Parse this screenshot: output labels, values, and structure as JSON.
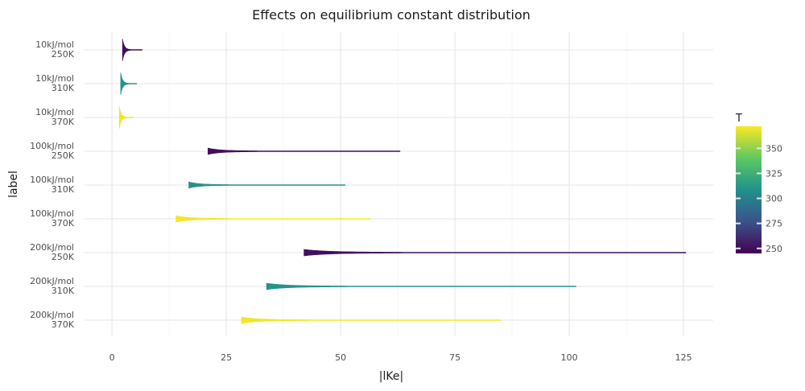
{
  "chart_data": {
    "type": "violin",
    "title": "Effects on equilibrium constant distribution",
    "xlabel": "|lKe|",
    "ylabel": "label",
    "xlim": [
      -6,
      131.5
    ],
    "x_ticks": [
      0,
      25,
      50,
      75,
      100,
      125
    ],
    "grid": true,
    "legend": {
      "title": "T",
      "placement": "right",
      "type": "colorbar",
      "range": [
        245,
        372
      ],
      "ticks": [
        250,
        275,
        300,
        325,
        350
      ],
      "colormap": [
        "#440154",
        "#3b528b",
        "#21918c",
        "#5ec962",
        "#fde725"
      ]
    },
    "categories": [
      {
        "line1": "10kJ/mol",
        "line2": "250K",
        "T": 250,
        "min": 2.3,
        "max": 6.6,
        "peak": 2.5
      },
      {
        "line1": "10kJ/mol",
        "line2": "310K",
        "T": 310,
        "min": 1.9,
        "max": 5.4,
        "peak": 2.1
      },
      {
        "line1": "10kJ/mol",
        "line2": "370K",
        "T": 370,
        "min": 1.6,
        "max": 4.6,
        "peak": 1.8
      },
      {
        "line1": "100kJ/mol",
        "line2": "250K",
        "T": 250,
        "min": 21.0,
        "max": 63.0,
        "peak": 23.0
      },
      {
        "line1": "100kJ/mol",
        "line2": "310K",
        "T": 310,
        "min": 16.8,
        "max": 51.0,
        "peak": 18.5
      },
      {
        "line1": "100kJ/mol",
        "line2": "370K",
        "T": 370,
        "min": 14.0,
        "max": 56.5,
        "peak": 15.5
      },
      {
        "line1": "200kJ/mol",
        "line2": "250K",
        "T": 250,
        "min": 42.0,
        "max": 125.5,
        "peak": 45.0
      },
      {
        "line1": "200kJ/mol",
        "line2": "310K",
        "T": 310,
        "min": 33.8,
        "max": 101.5,
        "peak": 36.5
      },
      {
        "line1": "200kJ/mol",
        "line2": "370K",
        "T": 370,
        "min": 28.3,
        "max": 85.0,
        "peak": 30.5
      }
    ]
  }
}
